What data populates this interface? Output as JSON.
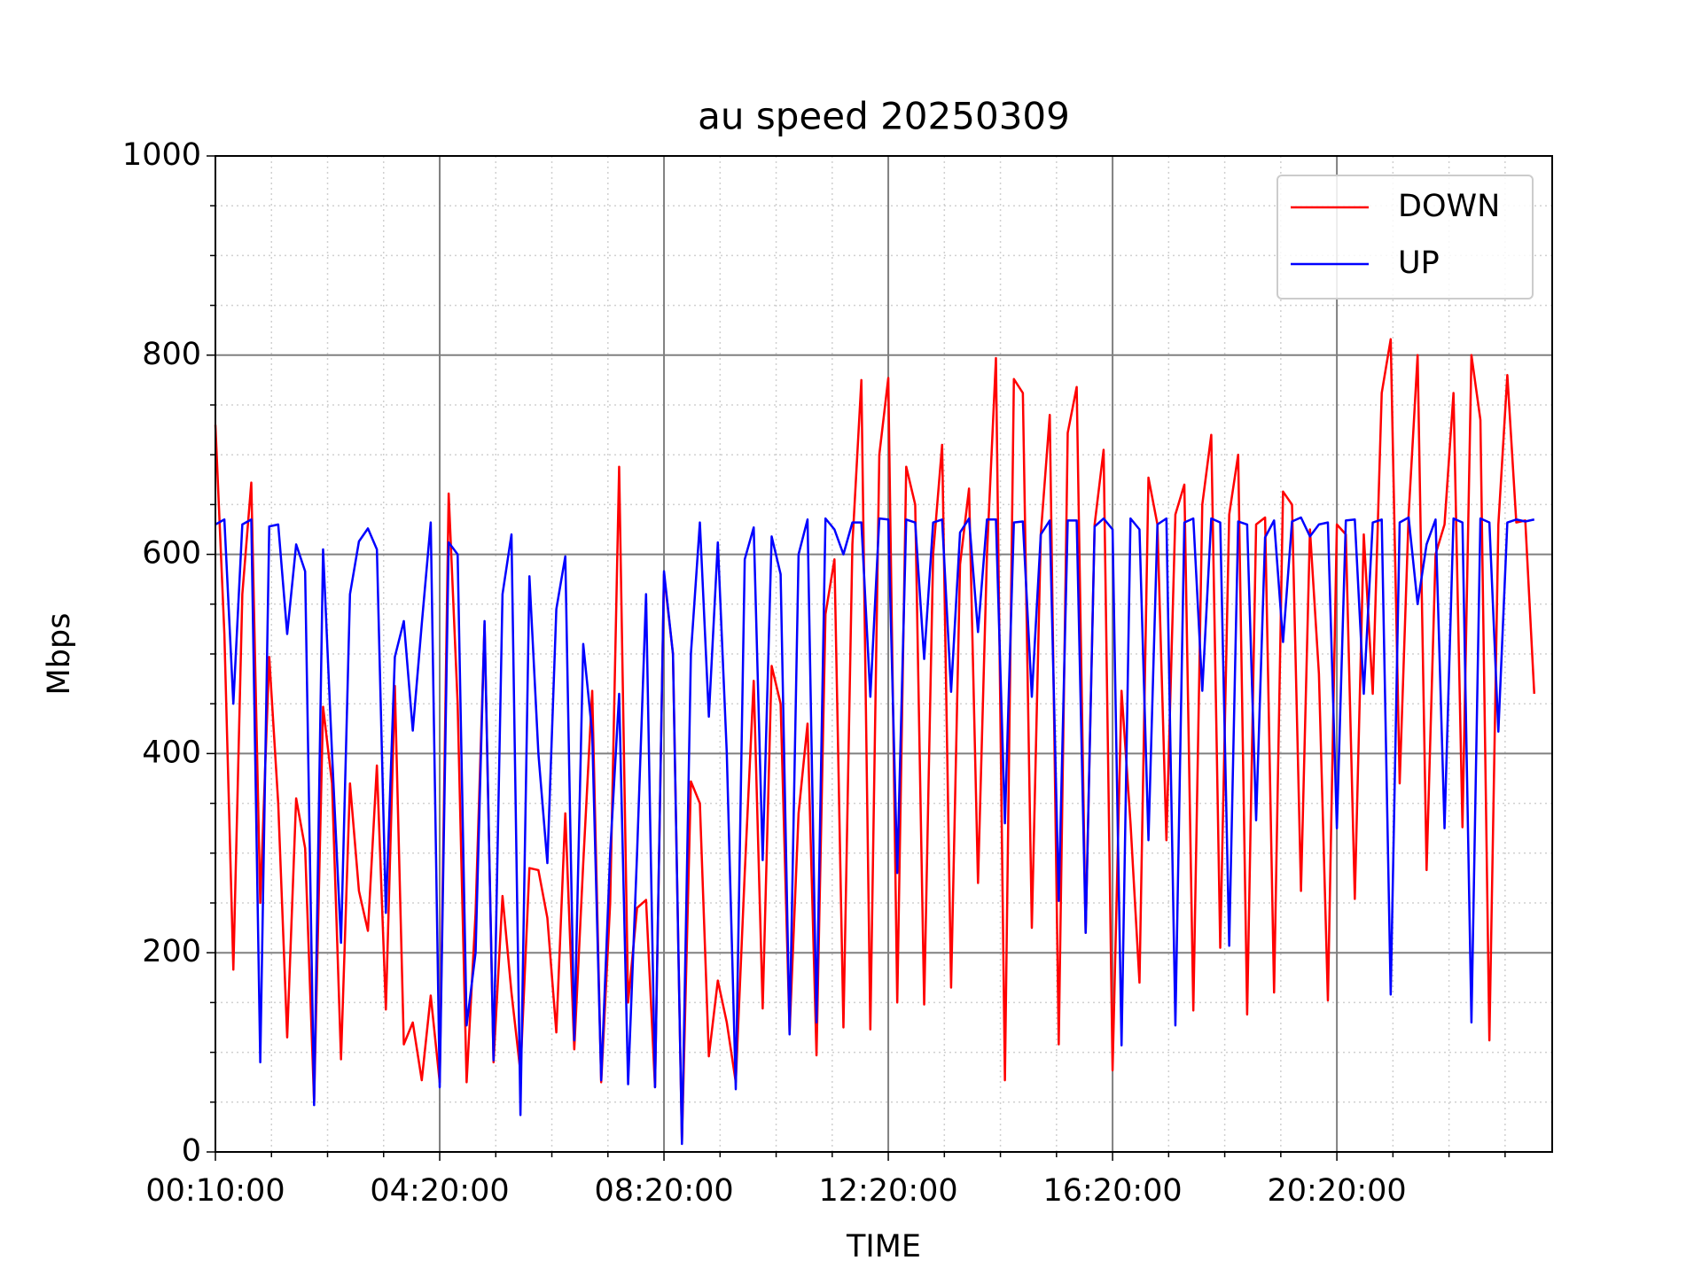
{
  "chart_data": {
    "type": "line",
    "title": "au speed 20250309",
    "x_label": "TIME",
    "y_label": "Mbps",
    "categories": [
      "00:10:00",
      null,
      null,
      null,
      null,
      null,
      null,
      null,
      null,
      null,
      null,
      null,
      null,
      null,
      null,
      null,
      null,
      null,
      null,
      null,
      null,
      null,
      null,
      null,
      null,
      "04:20:00",
      null,
      null,
      null,
      null,
      null,
      null,
      null,
      null,
      null,
      null,
      null,
      null,
      null,
      null,
      null,
      null,
      null,
      null,
      null,
      null,
      null,
      null,
      null,
      null,
      "08:20:00",
      null,
      null,
      null,
      null,
      null,
      null,
      null,
      null,
      null,
      null,
      null,
      null,
      null,
      null,
      null,
      null,
      null,
      null,
      null,
      null,
      null,
      null,
      null,
      null,
      "12:20:00",
      null,
      null,
      null,
      null,
      null,
      null,
      null,
      null,
      null,
      null,
      null,
      null,
      null,
      null,
      null,
      null,
      null,
      null,
      null,
      null,
      null,
      null,
      null,
      null,
      "16:20:00",
      null,
      null,
      null,
      null,
      null,
      null,
      null,
      null,
      null,
      null,
      null,
      null,
      null,
      null,
      null,
      null,
      null,
      null,
      null,
      null,
      null,
      null,
      null,
      null,
      "20:20:00",
      null,
      null,
      null,
      null,
      null,
      null,
      null,
      null,
      null,
      null,
      null,
      null,
      null,
      null,
      null,
      null,
      null,
      null,
      null,
      null,
      null,
      null
    ],
    "xlim": [
      0,
      149
    ],
    "series": [
      {
        "name": "DOWN",
        "color": "#ff0000",
        "values": [
          730,
          520,
          183,
          560,
          672,
          250,
          497,
          350,
          115,
          355,
          305,
          50,
          447,
          370,
          93,
          370,
          262,
          222,
          388,
          143,
          468,
          108,
          130,
          72,
          157,
          70,
          661,
          450,
          70,
          240,
          530,
          90,
          257,
          160,
          80,
          285,
          283,
          235,
          120,
          340,
          103,
          290,
          463,
          70,
          250,
          688,
          150,
          245,
          253,
          65,
          580,
          500,
          10,
          372,
          350,
          96,
          172,
          130,
          70,
          280,
          473,
          144,
          488,
          450,
          120,
          340,
          430,
          97,
          540,
          595,
          125,
          610,
          775,
          123,
          700,
          777,
          150,
          688,
          650,
          148,
          600,
          710,
          165,
          590,
          666,
          270,
          600,
          797,
          72,
          776,
          762,
          225,
          620,
          740,
          108,
          722,
          768,
          220,
          630,
          705,
          82,
          463,
          330,
          170,
          677,
          630,
          313,
          640,
          670,
          142,
          650,
          720,
          205,
          640,
          700,
          138,
          630,
          637,
          160,
          663,
          650,
          262,
          625,
          480,
          152,
          630,
          620,
          254,
          620,
          460,
          762,
          816,
          370,
          640,
          800,
          283,
          600,
          630,
          762,
          326,
          800,
          735,
          112,
          630,
          780,
          632,
          634,
          460
        ]
      },
      {
        "name": "UP",
        "color": "#0000ff",
        "values": [
          630,
          635,
          450,
          630,
          635,
          90,
          628,
          630,
          520,
          610,
          583,
          47,
          605,
          400,
          210,
          560,
          613,
          626,
          605,
          240,
          497,
          533,
          423,
          530,
          632,
          65,
          612,
          600,
          127,
          200,
          533,
          92,
          560,
          620,
          37,
          578,
          400,
          290,
          545,
          598,
          112,
          510,
          420,
          72,
          300,
          460,
          68,
          300,
          560,
          65,
          583,
          500,
          8,
          500,
          632,
          437,
          612,
          400,
          63,
          595,
          627,
          293,
          618,
          580,
          118,
          600,
          635,
          130,
          636,
          625,
          600,
          632,
          632,
          457,
          636,
          635,
          280,
          635,
          632,
          495,
          632,
          635,
          462,
          622,
          636,
          522,
          635,
          635,
          330,
          632,
          633,
          457,
          620,
          634,
          252,
          634,
          634,
          220,
          628,
          636,
          625,
          107,
          636,
          625,
          313,
          630,
          636,
          127,
          632,
          636,
          463,
          636,
          632,
          207,
          633,
          630,
          333,
          617,
          634,
          512,
          633,
          637,
          618,
          630,
          632,
          325,
          634,
          635,
          460,
          632,
          635,
          158,
          632,
          637,
          550,
          610,
          635,
          325,
          636,
          632,
          130,
          636,
          632,
          422,
          632,
          635,
          633,
          635
        ]
      }
    ],
    "ylim": [
      0,
      1000
    ],
    "yticks": [
      0,
      200,
      400,
      600,
      800,
      1000
    ],
    "grid": true,
    "legend": "upper right"
  }
}
